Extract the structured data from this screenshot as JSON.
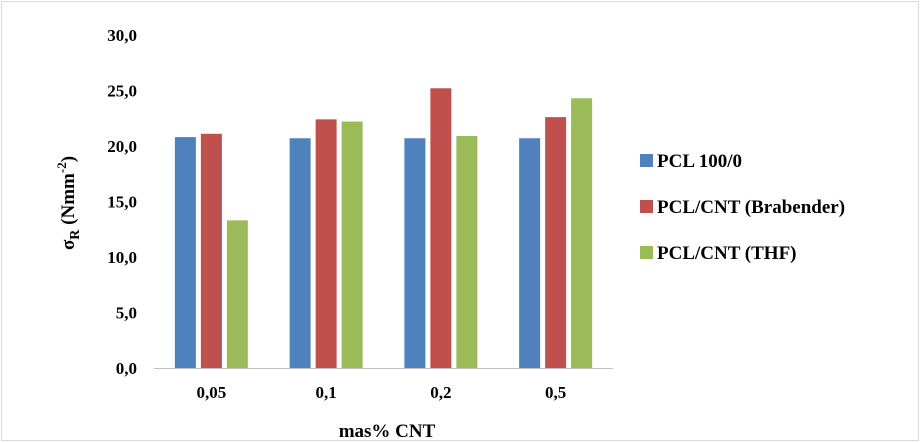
{
  "chart_data": {
    "type": "bar",
    "categories": [
      "0,05",
      "0,1",
      "0,2",
      "0,5"
    ],
    "series": [
      {
        "name": "PCL 100/0",
        "color": "#4f81bd",
        "values": [
          20.8,
          20.7,
          20.7,
          20.7
        ]
      },
      {
        "name": "PCL/CNT (Brabender)",
        "color": "#c0504d",
        "values": [
          21.1,
          22.4,
          25.2,
          22.6
        ]
      },
      {
        "name": "PCL/CNT (THF)",
        "color": "#9bbb59",
        "values": [
          13.3,
          22.2,
          20.9,
          24.3
        ]
      }
    ],
    "xlabel": "mas% CNT",
    "ylabel": {
      "main": "σ",
      "sub": "R",
      "unit": " (Nmm",
      "sup": "-2",
      "close": ")"
    },
    "ylim": [
      0,
      30
    ],
    "y_ticks": [
      "0,0",
      "5,0",
      "10,0",
      "15,0",
      "20,0",
      "25,0",
      "30,0"
    ],
    "grid": false,
    "legend_position": "right"
  }
}
